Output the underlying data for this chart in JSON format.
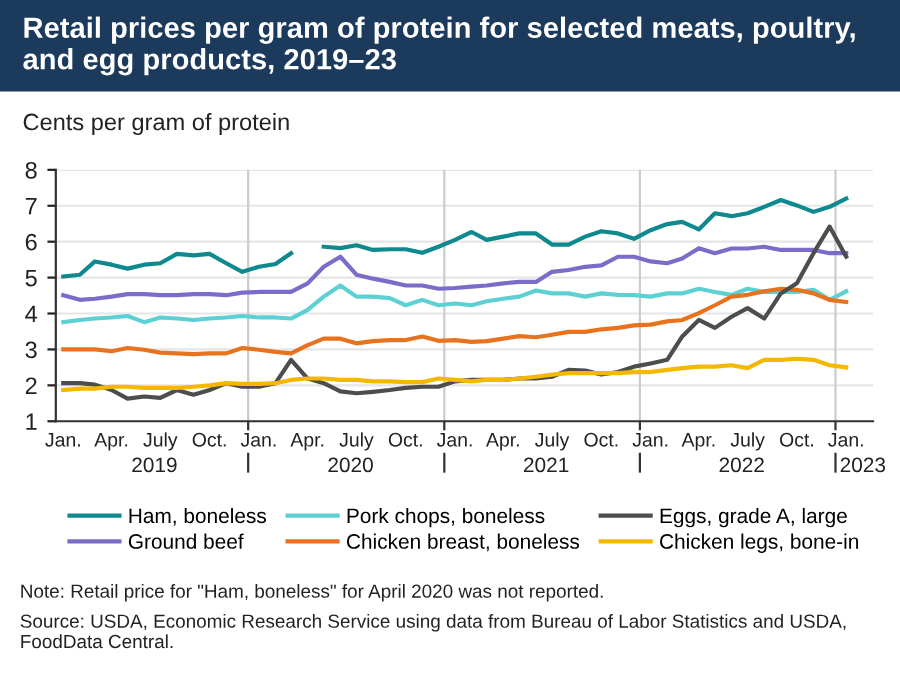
{
  "chart_data": {
    "type": "line",
    "title": "Retail prices per gram of protein for selected meats, poultry, and egg products, 2019–23",
    "ylabel": "Cents per gram of protein",
    "x": [
      "2019-01",
      "2019-02",
      "2019-03",
      "2019-04",
      "2019-05",
      "2019-06",
      "2019-07",
      "2019-08",
      "2019-09",
      "2019-10",
      "2019-11",
      "2019-12",
      "2020-01",
      "2020-02",
      "2020-03",
      "2020-04",
      "2020-05",
      "2020-06",
      "2020-07",
      "2020-08",
      "2020-09",
      "2020-10",
      "2020-11",
      "2020-12",
      "2021-01",
      "2021-02",
      "2021-03",
      "2021-04",
      "2021-05",
      "2021-06",
      "2021-07",
      "2021-08",
      "2021-09",
      "2021-10",
      "2021-11",
      "2021-12",
      "2022-01",
      "2022-02",
      "2022-03",
      "2022-04",
      "2022-05",
      "2022-06",
      "2022-07",
      "2022-08",
      "2022-09",
      "2022-10",
      "2022-11",
      "2022-12",
      "2023-01"
    ],
    "series": [
      {
        "name": "Ham, boneless",
        "color": "#0e8a8f",
        "values": [
          5.03,
          5.08,
          5.45,
          5.36,
          5.25,
          5.36,
          5.4,
          5.66,
          5.62,
          5.66,
          5.4,
          5.16,
          5.3,
          5.38,
          5.68,
          null,
          5.86,
          5.82,
          5.9,
          5.77,
          5.79,
          5.79,
          5.69,
          5.86,
          6.05,
          6.27,
          6.05,
          6.14,
          6.23,
          6.23,
          5.92,
          5.92,
          6.14,
          6.29,
          6.23,
          6.08,
          6.32,
          6.49,
          6.55,
          6.34,
          6.79,
          6.71,
          6.79,
          6.97,
          7.16,
          7.01,
          6.83,
          6.97,
          7.2
        ]
      },
      {
        "name": "Ground beef",
        "color": "#7a6cc8",
        "values": [
          4.51,
          4.38,
          4.41,
          4.47,
          4.54,
          4.54,
          4.51,
          4.51,
          4.54,
          4.54,
          4.51,
          4.58,
          4.6,
          4.6,
          4.6,
          4.84,
          5.3,
          5.58,
          5.08,
          4.97,
          4.88,
          4.78,
          4.78,
          4.69,
          4.71,
          4.75,
          4.78,
          4.84,
          4.88,
          4.88,
          5.16,
          5.21,
          5.3,
          5.34,
          5.58,
          5.58,
          5.45,
          5.4,
          5.53,
          5.82,
          5.68,
          5.81,
          5.81,
          5.86,
          5.77,
          5.77,
          5.77,
          5.68,
          5.68
        ]
      },
      {
        "name": "Pork chops, boneless",
        "color": "#5dd0d4",
        "values": [
          3.76,
          3.82,
          3.86,
          3.89,
          3.93,
          3.76,
          3.89,
          3.86,
          3.82,
          3.86,
          3.89,
          3.93,
          3.89,
          3.89,
          3.86,
          4.1,
          4.47,
          4.78,
          4.47,
          4.47,
          4.43,
          4.23,
          4.38,
          4.23,
          4.28,
          4.23,
          4.34,
          4.41,
          4.47,
          4.64,
          4.56,
          4.56,
          4.47,
          4.56,
          4.52,
          4.51,
          4.47,
          4.56,
          4.56,
          4.69,
          4.6,
          4.52,
          4.69,
          4.6,
          4.6,
          4.6,
          4.66,
          4.38,
          4.62
        ]
      },
      {
        "name": "Chicken breast, boneless",
        "color": "#e8731e",
        "values": [
          3.0,
          3.0,
          3.0,
          2.95,
          3.04,
          2.99,
          2.91,
          2.89,
          2.87,
          2.89,
          2.89,
          3.04,
          2.99,
          2.93,
          2.89,
          3.12,
          3.3,
          3.3,
          3.17,
          3.23,
          3.26,
          3.26,
          3.36,
          3.24,
          3.26,
          3.21,
          3.23,
          3.3,
          3.37,
          3.34,
          3.41,
          3.49,
          3.49,
          3.56,
          3.6,
          3.67,
          3.69,
          3.78,
          3.82,
          4.01,
          4.23,
          4.47,
          4.52,
          4.62,
          4.69,
          4.66,
          4.56,
          4.38,
          4.32
        ]
      },
      {
        "name": "Eggs, grade A, large",
        "color": "#4d4d4d",
        "values": [
          2.06,
          2.06,
          2.02,
          1.87,
          1.63,
          1.69,
          1.65,
          1.87,
          1.74,
          1.87,
          2.06,
          1.96,
          1.96,
          2.06,
          2.71,
          2.19,
          2.06,
          1.83,
          1.78,
          1.82,
          1.87,
          1.93,
          1.96,
          1.96,
          2.11,
          2.15,
          2.15,
          2.15,
          2.19,
          2.19,
          2.24,
          2.43,
          2.41,
          2.3,
          2.37,
          2.52,
          2.61,
          2.71,
          3.36,
          3.82,
          3.6,
          3.91,
          4.15,
          3.86,
          4.56,
          4.84,
          5.68,
          6.42,
          5.58
        ]
      },
      {
        "name": "Chicken legs, bone-in",
        "color": "#f5b800",
        "values": [
          1.87,
          1.91,
          1.91,
          1.96,
          1.96,
          1.93,
          1.93,
          1.93,
          1.96,
          2.0,
          2.06,
          2.04,
          2.04,
          2.06,
          2.15,
          2.19,
          2.19,
          2.15,
          2.15,
          2.11,
          2.11,
          2.09,
          2.09,
          2.19,
          2.15,
          2.11,
          2.15,
          2.15,
          2.19,
          2.24,
          2.3,
          2.34,
          2.34,
          2.34,
          2.34,
          2.37,
          2.37,
          2.43,
          2.48,
          2.52,
          2.52,
          2.56,
          2.48,
          2.71,
          2.71,
          2.74,
          2.71,
          2.56,
          2.5
        ]
      }
    ],
    "xlim": [
      "2018-12-18",
      "2023-02-20"
    ],
    "xticks": [
      {
        "value": "2019-01",
        "label": "Jan."
      },
      {
        "value": "2019-04",
        "label": "Apr."
      },
      {
        "value": "2019-07",
        "label": "July"
      },
      {
        "value": "2019-10",
        "label": "Oct."
      },
      {
        "value": "2020-01",
        "label": "Jan."
      },
      {
        "value": "2020-04",
        "label": "Apr."
      },
      {
        "value": "2020-07",
        "label": "July"
      },
      {
        "value": "2020-10",
        "label": "Oct."
      },
      {
        "value": "2021-01",
        "label": "Jan."
      },
      {
        "value": "2021-04",
        "label": "Apr."
      },
      {
        "value": "2021-07",
        "label": "July"
      },
      {
        "value": "2021-10",
        "label": "Oct."
      },
      {
        "value": "2022-01",
        "label": "Jan."
      },
      {
        "value": "2022-04",
        "label": "Apr."
      },
      {
        "value": "2022-07",
        "label": "July"
      },
      {
        "value": "2022-10",
        "label": "Oct."
      },
      {
        "value": "2023-01",
        "label": "Jan."
      }
    ],
    "ylim": [
      1,
      8
    ],
    "yticks": [
      1,
      2,
      3,
      4,
      5,
      6,
      7,
      8
    ],
    "ref_lines": [
      {
        "axis": "x",
        "value": "2019-12-12",
        "color": "#cccccc"
      },
      {
        "axis": "x",
        "value": "2020-12-12",
        "color": "#cccccc"
      },
      {
        "axis": "x",
        "value": "2021-12-12",
        "color": "#cccccc"
      },
      {
        "axis": "x",
        "value": "2022-12-12",
        "color": "#cccccc"
      }
    ],
    "x2ticks": [
      {
        "value": "2019-06-20",
        "label": "2019"
      },
      {
        "value": "2020-06-20",
        "label": "2020"
      },
      {
        "value": "2021-06-20",
        "label": "2021"
      },
      {
        "value": "2022-06-20",
        "label": "2022"
      },
      {
        "value": "2023-02-01",
        "label": "2023"
      }
    ],
    "x2lim": [
      "2018-12-18",
      "2023-02-20"
    ],
    "annotations": [
      "Note: Retail price for \"Ham, boneless\" for April 2020 was not reported.",
      "Source: USDA, Economic Research Service using data from Bureau of Labor Statistics and USDA, FoodData Central."
    ],
    "grid": "y",
    "legend": "bottom",
    "marker": "none",
    "line_style": "solid"
  }
}
